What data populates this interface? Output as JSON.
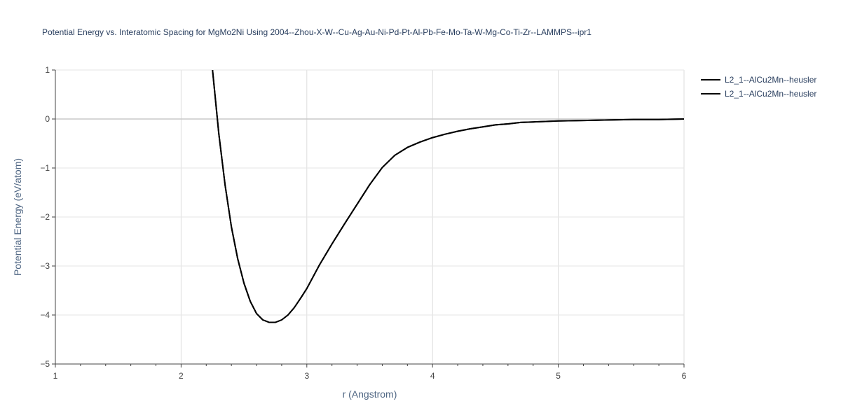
{
  "chart_data": {
    "type": "line",
    "title": "Potential Energy vs. Interatomic Spacing for MgMo2Ni Using 2004--Zhou-X-W--Cu-Ag-Au-Ni-Pd-Pt-Al-Pb-Fe-Mo-Ta-W-Mg-Co-Ti-Zr--LAMMPS--ipr1",
    "xlabel": "r (Angstrom)",
    "ylabel": "Potential Energy (eV/atom)",
    "xlim": [
      1,
      6
    ],
    "ylim": [
      -5,
      1
    ],
    "x_ticks": [
      "1",
      "2",
      "3",
      "4",
      "5",
      "6"
    ],
    "y_ticks": [
      "1",
      "0",
      "−1",
      "−2",
      "−3",
      "−4",
      "−5"
    ],
    "grid": true,
    "legend_position": "top-right",
    "line_color": "#000000",
    "series": [
      {
        "name": "L2_1--AlCu2Mn--heusler",
        "x": [
          2.25,
          2.3,
          2.35,
          2.4,
          2.45,
          2.5,
          2.55,
          2.6,
          2.65,
          2.7,
          2.75,
          2.8,
          2.85,
          2.9,
          2.95,
          3.0,
          3.1,
          3.2,
          3.3,
          3.4,
          3.5,
          3.6,
          3.7,
          3.8,
          3.9,
          4.0,
          4.1,
          4.2,
          4.3,
          4.4,
          4.5,
          4.6,
          4.7,
          4.8,
          4.9,
          5.0,
          5.2,
          5.4,
          5.6,
          5.8,
          6.0
        ],
        "y": [
          1.0,
          -0.3,
          -1.35,
          -2.2,
          -2.85,
          -3.35,
          -3.72,
          -3.97,
          -4.1,
          -4.15,
          -4.15,
          -4.1,
          -4.0,
          -3.85,
          -3.66,
          -3.46,
          -2.98,
          -2.55,
          -2.14,
          -1.74,
          -1.34,
          -0.99,
          -0.74,
          -0.58,
          -0.47,
          -0.38,
          -0.31,
          -0.25,
          -0.2,
          -0.16,
          -0.12,
          -0.1,
          -0.07,
          -0.06,
          -0.05,
          -0.04,
          -0.03,
          -0.02,
          -0.01,
          -0.01,
          0.0
        ]
      },
      {
        "name": "L2_1--AlCu2Mn--heusler",
        "x": [
          2.25,
          2.3,
          2.35,
          2.4,
          2.45,
          2.5,
          2.55,
          2.6,
          2.65,
          2.7,
          2.75,
          2.8,
          2.85,
          2.9,
          2.95,
          3.0,
          3.1,
          3.2,
          3.3,
          3.4,
          3.5,
          3.6,
          3.7,
          3.8,
          3.9,
          4.0,
          4.1,
          4.2,
          4.3,
          4.4,
          4.5,
          4.6,
          4.7,
          4.8,
          4.9,
          5.0,
          5.2,
          5.4,
          5.6,
          5.8,
          6.0
        ],
        "y": [
          1.0,
          -0.3,
          -1.35,
          -2.2,
          -2.85,
          -3.35,
          -3.72,
          -3.97,
          -4.1,
          -4.15,
          -4.15,
          -4.1,
          -4.0,
          -3.85,
          -3.66,
          -3.46,
          -2.98,
          -2.55,
          -2.14,
          -1.74,
          -1.34,
          -0.99,
          -0.74,
          -0.58,
          -0.47,
          -0.38,
          -0.31,
          -0.25,
          -0.2,
          -0.16,
          -0.12,
          -0.1,
          -0.07,
          -0.06,
          -0.05,
          -0.04,
          -0.03,
          -0.02,
          -0.01,
          -0.01,
          0.0
        ]
      }
    ]
  }
}
